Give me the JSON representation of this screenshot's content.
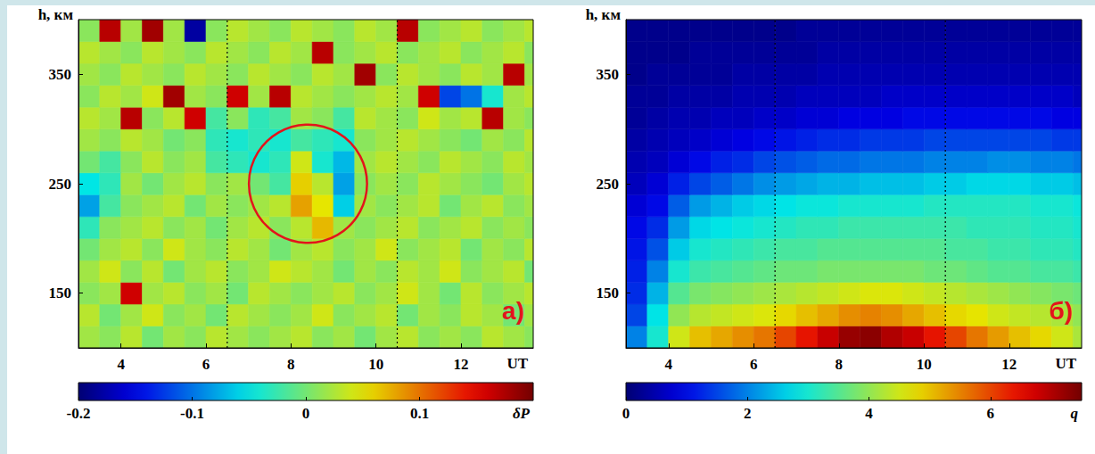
{
  "chart_data": [
    {
      "type": "heatmap",
      "panel": "а)",
      "x_label": "UT",
      "y_label": "h, км",
      "xlim": [
        3,
        13.7
      ],
      "ylim": [
        100,
        400
      ],
      "xticks": [
        4,
        6,
        8,
        10,
        12
      ],
      "yticks": [
        150,
        250,
        350
      ],
      "x_edges": [
        3,
        3.5,
        4,
        4.5,
        5,
        5.5,
        6,
        6.5,
        7,
        7.5,
        8,
        8.5,
        9,
        9.5,
        10,
        10.5,
        11,
        11.5,
        12,
        12.5,
        13,
        13.5,
        14
      ],
      "y_edges": [
        100,
        120,
        140,
        160,
        180,
        200,
        220,
        240,
        260,
        280,
        300,
        320,
        340,
        360,
        380,
        400
      ],
      "cells": [
        [
          0.02,
          0.01,
          0.03,
          0,
          0.02,
          0.01,
          0.03,
          0.02,
          0.01,
          0.02,
          0.03,
          0.01,
          0.02,
          0,
          0.02,
          0.03,
          0.01,
          0.02,
          0.01,
          0.03,
          0.02,
          0.01
        ],
        [
          0.03,
          0,
          0.02,
          0.04,
          0.01,
          0.02,
          0,
          0.03,
          0.02,
          0.01,
          0.02,
          0.04,
          0.01,
          0.02,
          0.03,
          0,
          0.02,
          0.01,
          0.03,
          0.02,
          0,
          0.02
        ],
        [
          0.01,
          0.02,
          0.16,
          0.02,
          0.03,
          0.01,
          0.02,
          0,
          0.03,
          0.02,
          0.01,
          0.02,
          0.03,
          0.01,
          0.02,
          0.04,
          0.02,
          0,
          0.03,
          0.01,
          0.02,
          0.03
        ],
        [
          0.02,
          0.04,
          0.01,
          0.03,
          0,
          0.02,
          0.03,
          0.01,
          0.02,
          0.04,
          0.03,
          0.02,
          0,
          0.02,
          0.01,
          0.03,
          0.02,
          0.04,
          0.01,
          0.02,
          0.03,
          0
        ],
        [
          0,
          0.02,
          0.03,
          0.01,
          0.04,
          0.02,
          0.01,
          0.03,
          0.02,
          0,
          0.02,
          0.03,
          0.01,
          0.02,
          0.04,
          0.01,
          0.02,
          0.03,
          0,
          0.02,
          0.01,
          0.03
        ],
        [
          -0.03,
          0.01,
          0.02,
          0.03,
          0.01,
          0.02,
          0,
          0.02,
          0.03,
          0.01,
          0.03,
          0.07,
          0.02,
          0.01,
          0.02,
          0.03,
          0.01,
          0.02,
          0.03,
          0.01,
          0.02,
          0.01
        ],
        [
          -0.08,
          -0.02,
          0.01,
          0.02,
          0.03,
          0,
          0.02,
          0.01,
          0.02,
          0.03,
          0.08,
          0.05,
          -0.06,
          0.02,
          0.01,
          0.02,
          0.03,
          0,
          0.02,
          0.03,
          0.01,
          0.02
        ],
        [
          -0.05,
          -0.03,
          0.02,
          0,
          0.02,
          0.03,
          0.01,
          0.02,
          0,
          -0.02,
          0.06,
          0.03,
          -0.08,
          0.01,
          0.02,
          0.01,
          0.03,
          0.02,
          0.01,
          0,
          0.02,
          0.03
        ],
        [
          0,
          -0.02,
          0.01,
          0.03,
          0.01,
          0.02,
          -0.02,
          -0.03,
          -0.04,
          -0.03,
          0.04,
          -0.04,
          -0.07,
          0.02,
          0.03,
          0.02,
          0.01,
          0.03,
          0.02,
          0.01,
          0.03,
          0.02
        ],
        [
          0.02,
          0.01,
          0.03,
          0.02,
          0,
          0.01,
          -0.03,
          -0.04,
          -0.03,
          -0.04,
          -0.02,
          -0.03,
          -0.04,
          0.01,
          0.02,
          0.03,
          0.02,
          0.01,
          0,
          0.02,
          0.01,
          0.03
        ],
        [
          0.03,
          0.02,
          0.17,
          0.01,
          0.03,
          0.16,
          -0.02,
          0.01,
          -0.03,
          -0.02,
          0.02,
          0.01,
          -0.02,
          0.03,
          0.02,
          0.01,
          0.04,
          0.02,
          0.03,
          0.17,
          0.02,
          0.01
        ],
        [
          0.01,
          0.03,
          0.02,
          0.04,
          0.18,
          0.02,
          0.01,
          0.16,
          0.02,
          0.17,
          0.03,
          0.02,
          0.01,
          0.02,
          0.03,
          0.02,
          0.16,
          -0.12,
          -0.1,
          -0.04,
          0.02,
          0.03
        ],
        [
          0.02,
          0.01,
          0.03,
          0.02,
          0.01,
          0.03,
          0.02,
          0.01,
          0.03,
          0.02,
          0.01,
          0.03,
          0.02,
          0.18,
          0.01,
          0.03,
          0.02,
          0.01,
          0.03,
          0.02,
          0.17,
          0.02
        ],
        [
          0.03,
          0.02,
          0.01,
          0.03,
          0.02,
          0.01,
          0.03,
          0.02,
          0.01,
          0.03,
          0.02,
          0.17,
          0.01,
          0.02,
          0.03,
          0.01,
          0.02,
          0.03,
          0.01,
          0.02,
          0.03,
          0.01
        ],
        [
          0.01,
          0.17,
          0.02,
          0.18,
          0.02,
          -0.18,
          0.01,
          0.03,
          0.02,
          0.01,
          0.03,
          0.02,
          0.01,
          0.03,
          0.02,
          0.17,
          0.01,
          0.02,
          0.03,
          0.01,
          0.02,
          0.03
        ]
      ],
      "color_range": [
        -0.2,
        0.2
      ],
      "color_ticks": [
        -0.2,
        -0.1,
        0,
        0.1
      ],
      "color_label": "δP",
      "vlines": [
        6.5,
        10.5
      ],
      "highlight": {
        "x": 8.4,
        "y": 250,
        "r": 54
      }
    },
    {
      "type": "heatmap",
      "panel": "б)",
      "x_label": "UT",
      "y_label": "h, км",
      "xlim": [
        3,
        13.7
      ],
      "ylim": [
        100,
        400
      ],
      "xticks": [
        4,
        6,
        8,
        10,
        12
      ],
      "yticks": [
        150,
        250,
        350
      ],
      "x_edges": [
        3,
        3.5,
        4,
        4.5,
        5,
        5.5,
        6,
        6.5,
        7,
        7.5,
        8,
        8.5,
        9,
        9.5,
        10,
        10.5,
        11,
        11.5,
        12,
        12.5,
        13,
        13.5,
        14
      ],
      "y_edges": [
        100,
        120,
        140,
        160,
        180,
        200,
        220,
        240,
        260,
        280,
        300,
        320,
        340,
        360,
        380,
        400
      ],
      "cells": [
        [
          2.0,
          3.0,
          4.5,
          5.0,
          5.2,
          5.4,
          5.6,
          6.0,
          6.4,
          6.8,
          7.2,
          7.3,
          7.0,
          6.8,
          6.4,
          6.0,
          5.6,
          5.3,
          5.0,
          4.8,
          4.5,
          4.2
        ],
        [
          1.5,
          2.8,
          4.0,
          4.3,
          4.4,
          4.5,
          4.6,
          4.8,
          5.0,
          5.2,
          5.4,
          5.5,
          5.4,
          5.2,
          5.0,
          4.8,
          4.7,
          4.5,
          4.4,
          4.3,
          4.2,
          4.0
        ],
        [
          1.3,
          2.4,
          3.5,
          3.8,
          3.9,
          4.0,
          4.1,
          4.2,
          4.3,
          4.4,
          4.5,
          4.6,
          4.6,
          4.5,
          4.4,
          4.3,
          4.2,
          4.1,
          4.0,
          3.9,
          3.8,
          3.7
        ],
        [
          1.2,
          2.0,
          3.0,
          3.3,
          3.4,
          3.5,
          3.6,
          3.7,
          3.7,
          3.8,
          3.8,
          3.8,
          3.8,
          3.8,
          3.7,
          3.7,
          3.6,
          3.5,
          3.5,
          3.4,
          3.4,
          3.3
        ],
        [
          1.1,
          1.6,
          2.6,
          3.0,
          3.1,
          3.2,
          3.3,
          3.4,
          3.4,
          3.5,
          3.5,
          3.5,
          3.5,
          3.5,
          3.5,
          3.4,
          3.4,
          3.3,
          3.3,
          3.2,
          3.2,
          3.1
        ],
        [
          1.0,
          1.3,
          2.2,
          2.7,
          2.8,
          2.9,
          3.0,
          3.1,
          3.2,
          3.2,
          3.3,
          3.3,
          3.3,
          3.3,
          3.3,
          3.3,
          3.2,
          3.2,
          3.2,
          3.1,
          3.1,
          3.0
        ],
        [
          0.8,
          1.0,
          1.7,
          2.2,
          2.4,
          2.6,
          2.7,
          2.8,
          2.9,
          2.9,
          3.0,
          3.0,
          3.0,
          3.0,
          3.1,
          3.1,
          3.1,
          3.1,
          3.1,
          3.0,
          3.0,
          2.9
        ],
        [
          0.6,
          0.8,
          1.2,
          1.5,
          1.7,
          1.9,
          2.1,
          2.2,
          2.3,
          2.4,
          2.4,
          2.5,
          2.5,
          2.5,
          2.6,
          2.6,
          2.7,
          2.7,
          2.7,
          2.6,
          2.6,
          2.5
        ],
        [
          0.5,
          0.6,
          0.8,
          1.0,
          1.2,
          1.3,
          1.5,
          1.6,
          1.7,
          1.8,
          1.8,
          1.9,
          1.9,
          1.9,
          2.0,
          2.0,
          2.0,
          2.1,
          2.1,
          2.0,
          2.0,
          1.9
        ],
        [
          0.4,
          0.5,
          0.6,
          0.7,
          0.8,
          0.9,
          1.0,
          1.1,
          1.2,
          1.3,
          1.3,
          1.4,
          1.4,
          1.4,
          1.5,
          1.5,
          1.5,
          1.5,
          1.5,
          1.5,
          1.4,
          1.4
        ],
        [
          0.3,
          0.4,
          0.5,
          0.5,
          0.6,
          0.6,
          0.7,
          0.7,
          0.8,
          0.8,
          0.9,
          0.9,
          0.9,
          1.0,
          1.0,
          1.0,
          1.0,
          1.0,
          1.0,
          1.0,
          0.9,
          0.9
        ],
        [
          0.3,
          0.3,
          0.4,
          0.4,
          0.4,
          0.5,
          0.5,
          0.5,
          0.6,
          0.6,
          0.6,
          0.6,
          0.7,
          0.7,
          0.7,
          0.7,
          0.7,
          0.7,
          0.7,
          0.7,
          0.7,
          0.6
        ],
        [
          0.2,
          0.3,
          0.3,
          0.3,
          0.3,
          0.4,
          0.4,
          0.4,
          0.4,
          0.5,
          0.5,
          0.5,
          0.5,
          0.5,
          0.5,
          0.5,
          0.5,
          0.5,
          0.5,
          0.5,
          0.5,
          0.5
        ],
        [
          0.2,
          0.2,
          0.2,
          0.3,
          0.3,
          0.3,
          0.3,
          0.3,
          0.3,
          0.4,
          0.4,
          0.4,
          0.4,
          0.4,
          0.4,
          0.4,
          0.4,
          0.4,
          0.4,
          0.4,
          0.4,
          0.4
        ],
        [
          0.2,
          0.2,
          0.2,
          0.2,
          0.2,
          0.2,
          0.2,
          0.2,
          0.3,
          0.3,
          0.3,
          0.3,
          0.3,
          0.3,
          0.3,
          0.3,
          0.3,
          0.3,
          0.3,
          0.3,
          0.3,
          0.3
        ]
      ],
      "color_range": [
        0,
        7.5
      ],
      "color_ticks": [
        0,
        2,
        4,
        6
      ],
      "color_label": "q",
      "vlines": [
        6.5,
        10.5
      ]
    }
  ]
}
